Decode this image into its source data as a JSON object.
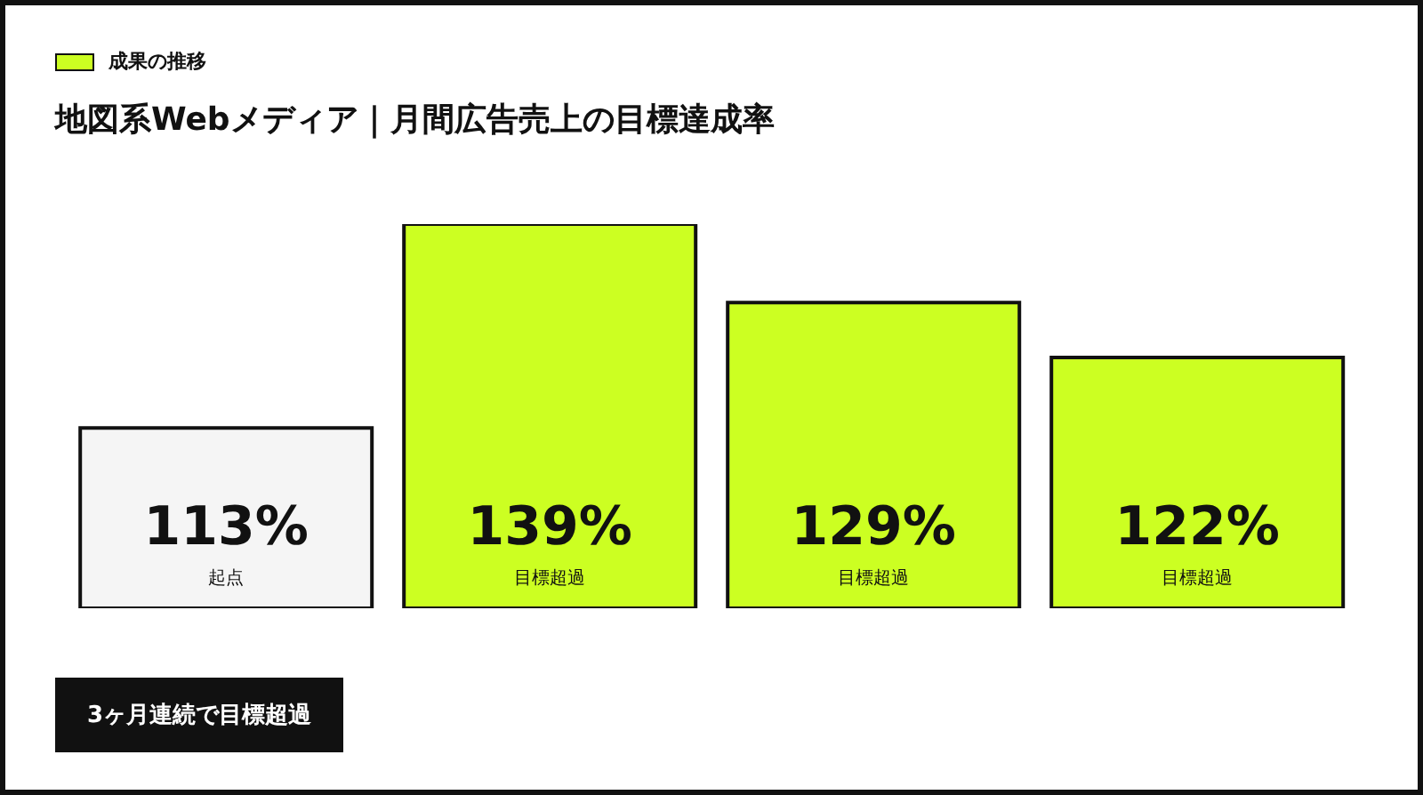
{
  "chart_data": {
    "type": "bar",
    "title": "地図系Webメディア｜月間広告売上の目標達成率",
    "subtitle": "成果の推移",
    "categories": [
      "起点",
      "目標超過",
      "目標超過",
      "目標超過"
    ],
    "values": [
      113,
      139,
      129,
      122
    ],
    "value_labels": [
      "113%",
      "139%",
      "129%",
      "122%"
    ],
    "colors": [
      "#f5f5f5",
      "#ccff22",
      "#ccff22",
      "#ccff22"
    ],
    "ylim": [
      90,
      139
    ],
    "tick_labels": false,
    "annotations": [
      "3ヶ月連続で目標超過"
    ]
  }
}
